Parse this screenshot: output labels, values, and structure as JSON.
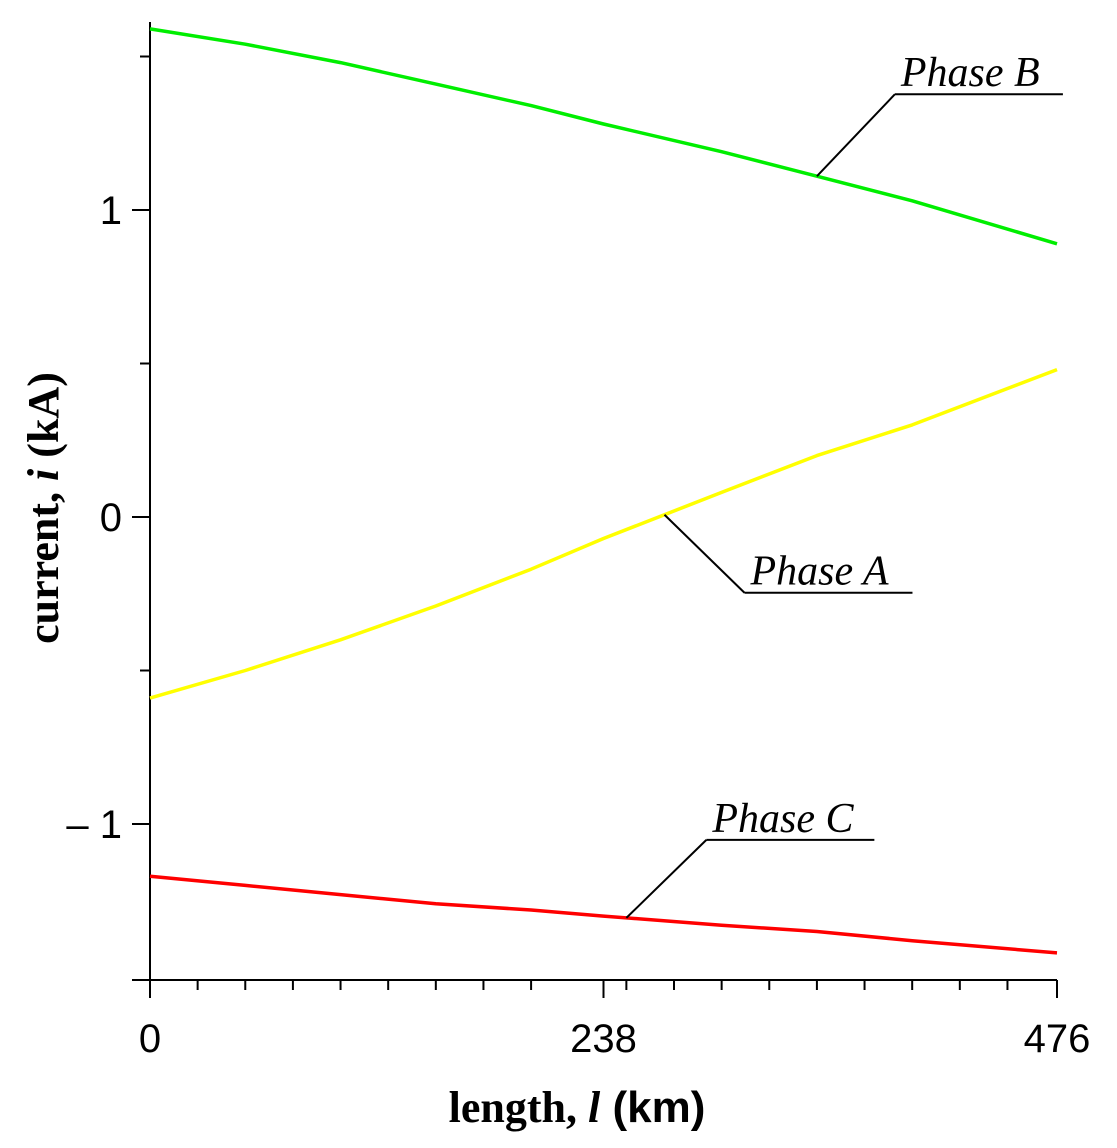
{
  "chart_data": {
    "type": "line",
    "title": "",
    "xlabel": {
      "prefix": "length, ",
      "variable": "l",
      "unit": " (km)"
    },
    "ylabel": {
      "prefix": "current, ",
      "variable": "i",
      "unit": " (kA)"
    },
    "xlim": [
      0,
      476
    ],
    "ylim": [
      -1.5,
      1.6
    ],
    "x_ticks": [
      0,
      238,
      476
    ],
    "x_tick_labels": [
      "0",
      "238",
      "476"
    ],
    "x_minor_ticks": [
      25,
      50,
      75,
      100,
      125,
      150,
      175,
      200,
      250,
      275,
      300,
      325,
      350,
      375,
      400,
      425,
      450
    ],
    "y_ticks": [
      -1,
      0,
      1
    ],
    "y_tick_labels": [
      "– 1",
      "0",
      "1"
    ],
    "y_minor_ticks": [
      -0.5,
      0.5,
      1.5
    ],
    "grid": false,
    "legend": "none",
    "series": [
      {
        "name": "Phase A",
        "color": "#ffff00",
        "x": [
          0,
          50,
          100,
          150,
          200,
          238,
          300,
          350,
          400,
          476
        ],
        "values": [
          -0.59,
          -0.5,
          -0.4,
          -0.29,
          -0.17,
          -0.07,
          0.08,
          0.2,
          0.3,
          0.48
        ]
      },
      {
        "name": "Phase B",
        "color": "#00ee00",
        "x": [
          0,
          50,
          100,
          150,
          200,
          238,
          300,
          350,
          400,
          476
        ],
        "values": [
          1.59,
          1.54,
          1.48,
          1.41,
          1.34,
          1.28,
          1.19,
          1.11,
          1.03,
          0.89
        ]
      },
      {
        "name": "Phase C",
        "color": "#ff0000",
        "x": [
          0,
          50,
          100,
          150,
          200,
          238,
          300,
          350,
          400,
          476
        ],
        "values": [
          -1.17,
          -1.2,
          -1.23,
          -1.26,
          -1.28,
          -1.3,
          -1.33,
          -1.35,
          -1.38,
          -1.42
        ]
      }
    ],
    "annotations": [
      {
        "text": "Phase B",
        "series": "Phase B",
        "anchor_x": 350
      },
      {
        "text": "Phase A",
        "series": "Phase A",
        "anchor_x": 270
      },
      {
        "text": "Phase C",
        "series": "Phase C",
        "anchor_x": 250
      }
    ]
  }
}
